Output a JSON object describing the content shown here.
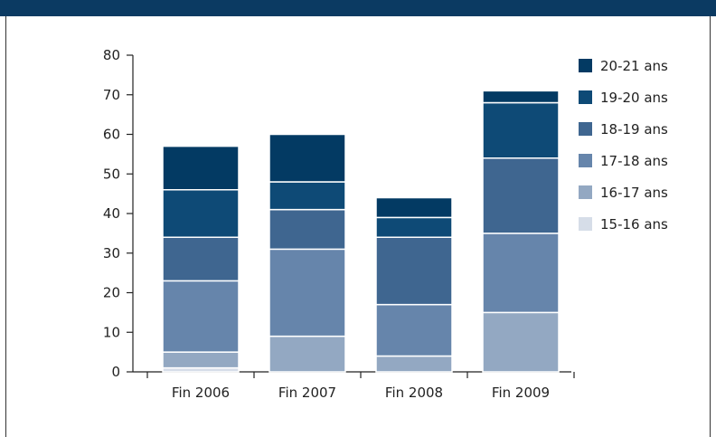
{
  "chart_data": {
    "type": "bar",
    "stacked": true,
    "categories": [
      "Fin 2006",
      "Fin 2007",
      "Fin 2008",
      "Fin 2009"
    ],
    "series": [
      {
        "name": "15-16 ans",
        "color": "#d6dde8",
        "values": [
          1,
          0,
          0,
          0
        ]
      },
      {
        "name": "16-17 ans",
        "color": "#93a8c2",
        "values": [
          4,
          9,
          4,
          15
        ]
      },
      {
        "name": "17-18 ans",
        "color": "#6685ab",
        "values": [
          18,
          22,
          13,
          20
        ]
      },
      {
        "name": "18-19 ans",
        "color": "#3f6690",
        "values": [
          11,
          10,
          17,
          19
        ]
      },
      {
        "name": "19-20 ans",
        "color": "#0e4a76",
        "values": [
          12,
          7,
          5,
          14
        ]
      },
      {
        "name": "20-21 ans",
        "color": "#033a63",
        "values": [
          11,
          12,
          5,
          3
        ]
      }
    ],
    "yticks": [
      0,
      10,
      20,
      30,
      40,
      50,
      60,
      70,
      80
    ],
    "ylim": [
      0,
      80
    ],
    "legend_position": "right",
    "grid": false
  }
}
